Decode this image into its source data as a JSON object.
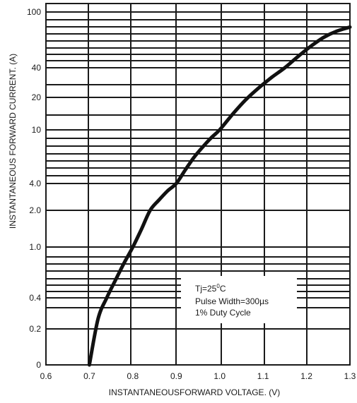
{
  "chart_data": {
    "type": "line",
    "title": "",
    "xlabel": "INSTANTANEOUSFORWARD VOLTAGE. (V)",
    "ylabel": "INSTANTANEOUS FORWARD CURRENT. (A)",
    "xlim": [
      0.6,
      1.3
    ],
    "y_scale": "log (non-uniform decades as printed)",
    "x_tick_labels": [
      "0.6",
      "0.7",
      "0.8",
      "0.9",
      "1.0",
      "1.1",
      "1.2",
      "1.3"
    ],
    "y_tick_labels": [
      "0",
      "0.2",
      "0.4",
      "1.0",
      "2.0",
      "4.0",
      "10",
      "20",
      "40",
      "100"
    ],
    "grid": true,
    "series": [
      {
        "x": [
          0.7,
          0.72,
          0.74,
          0.76,
          0.78,
          0.8,
          0.82,
          0.84,
          0.86,
          0.88,
          0.9,
          0.92,
          0.94,
          0.96,
          0.98,
          1.0,
          1.03,
          1.06,
          1.09,
          1.12,
          1.15,
          1.18,
          1.21,
          1.24,
          1.27,
          1.3
        ],
        "y": [
          0,
          0.25,
          0.4,
          0.55,
          0.75,
          1.0,
          1.4,
          2.0,
          2.6,
          3.3,
          4.0,
          5.0,
          6.2,
          7.4,
          8.7,
          10,
          14,
          19,
          25,
          32,
          40,
          48,
          57,
          66,
          73,
          78
        ]
      }
    ],
    "annotation": [
      "Tj=25",
      "0",
      "C",
      "Pulse Width=300",
      "µs",
      "1% Duty Cycle"
    ]
  }
}
